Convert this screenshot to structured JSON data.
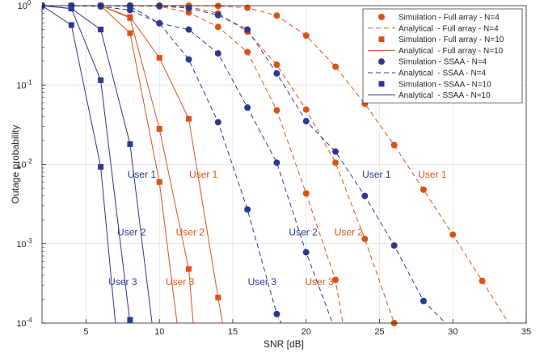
{
  "colors": {
    "orange": "#d95319",
    "blue": "#2b3990",
    "axis": "#262626",
    "grid": "#dfdfdf"
  },
  "chart_data": {
    "type": "line",
    "title": "",
    "xlabel": "SNR [dB]",
    "ylabel": "Outage probability",
    "xlim": [
      2,
      35
    ],
    "ylim": [
      0.0001,
      1
    ],
    "yscale": "log",
    "grid": true,
    "legend_position": "top-right",
    "x_ticks": [
      5,
      10,
      15,
      20,
      25,
      30,
      35
    ],
    "x_tick_labels": [
      "5",
      "10",
      "15",
      "20",
      "25",
      "30",
      "35"
    ],
    "y_ticks": [
      0.0001,
      0.001,
      0.01,
      0.1,
      1
    ],
    "y_tick_labels": [
      {
        "base": "10",
        "exp": "-4"
      },
      {
        "base": "10",
        "exp": "-3"
      },
      {
        "base": "10",
        "exp": "-2"
      },
      {
        "base": "10",
        "exp": "-1"
      },
      {
        "base": "10",
        "exp": "0"
      }
    ],
    "legend": [
      {
        "label": "Simulation - Full array - N=4",
        "color": "orange",
        "marker": "circle",
        "line": "none"
      },
      {
        "label": "Analytical  - Full array - N=4",
        "color": "orange",
        "marker": "none",
        "line": "dashed"
      },
      {
        "label": "Simulation - Full array - N=10",
        "color": "orange",
        "marker": "square",
        "line": "none"
      },
      {
        "label": "Analytical  - Full array - N=10",
        "color": "orange",
        "marker": "none",
        "line": "solid"
      },
      {
        "label": "Simulation - SSAA - N=4",
        "color": "blue",
        "marker": "circle",
        "line": "none"
      },
      {
        "label": "Analytical  - SSAA - N=4",
        "color": "blue",
        "marker": "none",
        "line": "dashed"
      },
      {
        "label": "Simulation - SSAA - N=10",
        "color": "blue",
        "marker": "square",
        "line": "none"
      },
      {
        "label": "Analytical  - SSAA - N=10",
        "color": "blue",
        "marker": "none",
        "line": "solid"
      }
    ],
    "series": [
      {
        "group": "Full array - N=4",
        "user": "User 1",
        "color": "orange",
        "marker": "circle",
        "line": "dashed",
        "sim_x": [
          2,
          4,
          6,
          8,
          10,
          12,
          14,
          16,
          18,
          20,
          22,
          24,
          26,
          28,
          30,
          32
        ],
        "sim_y": [
          1,
          1,
          1,
          1,
          1,
          1,
          0.99,
          0.94,
          0.75,
          0.42,
          0.17,
          0.058,
          0.0175,
          0.0048,
          0.0013,
          0.00034
        ],
        "ana_x": [
          2,
          4,
          6,
          8,
          10,
          12,
          14,
          16,
          18,
          20,
          22,
          24,
          26,
          28,
          30,
          32,
          33.8
        ],
        "ana_y": [
          1,
          1,
          1,
          1,
          1,
          1,
          0.99,
          0.94,
          0.75,
          0.42,
          0.17,
          0.058,
          0.0175,
          0.0048,
          0.0013,
          0.00034,
          0.0001
        ]
      },
      {
        "group": "Full array - N=4",
        "user": "User 2",
        "color": "orange",
        "marker": "circle",
        "line": "dashed",
        "sim_x": [
          2,
          4,
          6,
          8,
          10,
          12,
          14,
          16,
          18,
          20,
          22,
          24,
          26
        ],
        "sim_y": [
          1,
          1,
          1,
          1,
          1,
          0.97,
          0.8,
          0.47,
          0.18,
          0.049,
          0.0105,
          0.00115,
          0.0001
        ],
        "ana_x": [
          2,
          4,
          6,
          8,
          10,
          12,
          14,
          16,
          18,
          20,
          22,
          24,
          26
        ],
        "ana_y": [
          1,
          1,
          1,
          1,
          1,
          0.97,
          0.8,
          0.47,
          0.18,
          0.049,
          0.0105,
          0.00115,
          0.0001
        ]
      },
      {
        "group": "Full array - N=4",
        "user": "User 3",
        "color": "orange",
        "marker": "circle",
        "line": "dashed",
        "sim_x": [
          2,
          4,
          6,
          8,
          10,
          12,
          14,
          16,
          18,
          20,
          22
        ],
        "sim_y": [
          1,
          1,
          1,
          1,
          0.98,
          0.82,
          0.54,
          0.26,
          0.048,
          0.0043,
          0.00035
        ],
        "ana_x": [
          2,
          4,
          6,
          8,
          10,
          12,
          14,
          16,
          18,
          20,
          22,
          22.5
        ],
        "ana_y": [
          1,
          1,
          1,
          1,
          0.98,
          0.82,
          0.54,
          0.26,
          0.048,
          0.0043,
          0.00035,
          0.0001
        ]
      },
      {
        "group": "Full array - N=10",
        "user": "User 1",
        "color": "orange",
        "marker": "square",
        "line": "solid",
        "sim_x": [
          2,
          4,
          6,
          8,
          10,
          12,
          14
        ],
        "sim_y": [
          1,
          1,
          1,
          0.72,
          0.22,
          0.0375,
          0.00021
        ],
        "ana_x": [
          2,
          4,
          6,
          8,
          10,
          12,
          14,
          14.3
        ],
        "ana_y": [
          1,
          1,
          1,
          0.72,
          0.22,
          0.0375,
          0.00021,
          0.0001
        ]
      },
      {
        "group": "Full array - N=10",
        "user": "User 2",
        "color": "orange",
        "marker": "square",
        "line": "solid",
        "sim_x": [
          2,
          4,
          6,
          8,
          10,
          12
        ],
        "sim_y": [
          1,
          1,
          1,
          0.7,
          0.028,
          0.00048
        ],
        "ana_x": [
          2,
          4,
          6,
          8,
          10,
          12,
          12.3
        ],
        "ana_y": [
          1,
          1,
          1,
          0.7,
          0.028,
          0.00048,
          0.0001
        ]
      },
      {
        "group": "Full array - N=10",
        "user": "User 3",
        "color": "orange",
        "marker": "square",
        "line": "solid",
        "sim_x": [
          2,
          4,
          6,
          8,
          10
        ],
        "sim_y": [
          1,
          1,
          1,
          0.45,
          0.006
        ],
        "ana_x": [
          2,
          4,
          6,
          8,
          10,
          11.2
        ],
        "ana_y": [
          1,
          1,
          1,
          0.45,
          0.006,
          0.0001
        ]
      },
      {
        "group": "SSAA - N=4",
        "user": "User 1",
        "color": "blue",
        "marker": "circle",
        "line": "dashed",
        "sim_x": [
          2,
          4,
          6,
          8,
          10,
          12,
          14,
          16,
          18,
          20,
          22,
          24,
          26,
          28
        ],
        "sim_y": [
          1,
          1,
          1,
          1,
          0.99,
          0.93,
          0.76,
          0.5,
          0.14,
          0.035,
          0.0145,
          0.004,
          0.00095,
          0.00019
        ],
        "ana_x": [
          2,
          4,
          6,
          8,
          10,
          12,
          14,
          16,
          18,
          20,
          22,
          24,
          26,
          28,
          29.5
        ],
        "ana_y": [
          1,
          1,
          1,
          1,
          0.99,
          0.93,
          0.76,
          0.5,
          0.14,
          0.035,
          0.0145,
          0.004,
          0.00095,
          0.00019,
          0.0001
        ]
      },
      {
        "group": "SSAA - N=4",
        "user": "User 2",
        "color": "blue",
        "marker": "circle",
        "line": "dashed",
        "sim_x": [
          2,
          4,
          6,
          8,
          10,
          12,
          14,
          16,
          18,
          20
        ],
        "sim_y": [
          1,
          1,
          1,
          0.98,
          0.6,
          0.5,
          0.25,
          0.052,
          0.0105,
          0.00078
        ],
        "ana_x": [
          2,
          4,
          6,
          8,
          10,
          12,
          14,
          16,
          18,
          20,
          21.8
        ],
        "ana_y": [
          1,
          1,
          1,
          0.98,
          0.6,
          0.5,
          0.25,
          0.052,
          0.0105,
          0.00078,
          0.0001
        ]
      },
      {
        "group": "SSAA - N=4",
        "user": "User 3",
        "color": "blue",
        "marker": "circle",
        "line": "dashed",
        "sim_x": [
          2,
          4,
          6,
          8,
          10,
          12,
          14,
          16,
          18
        ],
        "sim_y": [
          1,
          1,
          0.98,
          0.88,
          0.6,
          0.21,
          0.034,
          0.0027,
          0.00013
        ],
        "ana_x": [
          2,
          4,
          6,
          8,
          10,
          12,
          14,
          16,
          18,
          18.3
        ],
        "ana_y": [
          1,
          1,
          0.98,
          0.88,
          0.6,
          0.21,
          0.034,
          0.0027,
          0.00013,
          0.0001
        ]
      },
      {
        "group": "SSAA - N=10",
        "user": "User 1",
        "color": "blue",
        "marker": "square",
        "line": "solid",
        "sim_x": [
          2,
          4,
          6,
          8
        ],
        "sim_y": [
          1,
          0.92,
          0.5,
          0.018
        ],
        "ana_x": [
          2,
          4,
          6,
          8,
          9.5
        ],
        "ana_y": [
          1,
          0.92,
          0.5,
          0.018,
          0.0001
        ]
      },
      {
        "group": "SSAA - N=10",
        "user": "User 2",
        "color": "blue",
        "marker": "square",
        "line": "solid",
        "sim_x": [
          2,
          4,
          6,
          8
        ],
        "sim_y": [
          1,
          0.92,
          0.115,
          0.00011
        ],
        "ana_x": [
          2,
          4,
          6,
          8
        ],
        "ana_y": [
          1,
          0.92,
          0.115,
          0.0001
        ]
      },
      {
        "group": "SSAA - N=10",
        "user": "User 3",
        "color": "blue",
        "marker": "square",
        "line": "solid",
        "sim_x": [
          2,
          4,
          6
        ],
        "sim_y": [
          1,
          0.57,
          0.0093
        ],
        "ana_x": [
          2,
          4,
          6,
          7
        ],
        "ana_y": [
          1,
          0.57,
          0.0093,
          0.0001
        ]
      }
    ],
    "annotations": [
      {
        "text": "User 1",
        "x": 8.8,
        "y": 0.0075,
        "color": "blue"
      },
      {
        "text": "User 2",
        "x": 8.1,
        "y": 0.0014,
        "color": "blue"
      },
      {
        "text": "User 3",
        "x": 7.5,
        "y": 0.00033,
        "color": "blue"
      },
      {
        "text": "User 1",
        "x": 13.0,
        "y": 0.0075,
        "color": "orange"
      },
      {
        "text": "User 2",
        "x": 12.1,
        "y": 0.0014,
        "color": "orange"
      },
      {
        "text": "User 3",
        "x": 11.4,
        "y": 0.00033,
        "color": "orange"
      },
      {
        "text": "User 1",
        "x": 24.8,
        "y": 0.0075,
        "color": "blue"
      },
      {
        "text": "User 2",
        "x": 19.8,
        "y": 0.0014,
        "color": "blue"
      },
      {
        "text": "User 3",
        "x": 17.0,
        "y": 0.00033,
        "color": "blue"
      },
      {
        "text": "User 1",
        "x": 28.6,
        "y": 0.0075,
        "color": "orange"
      },
      {
        "text": "User 2",
        "x": 22.9,
        "y": 0.0014,
        "color": "orange"
      },
      {
        "text": "User 3",
        "x": 20.9,
        "y": 0.00033,
        "color": "orange"
      }
    ]
  }
}
